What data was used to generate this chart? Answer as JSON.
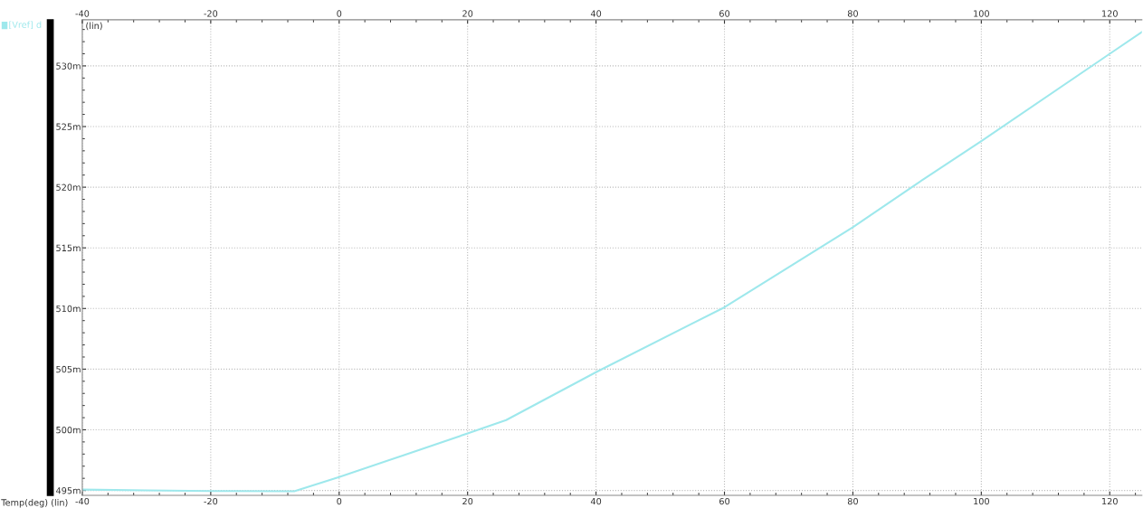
{
  "chart_data": {
    "type": "line",
    "xlabel": "Temp(deg) (lin)",
    "ylabel": "(lin)",
    "x": [
      -40,
      -30,
      -20,
      -7,
      0,
      10,
      20,
      26,
      40,
      60,
      80,
      90,
      100,
      120,
      125
    ],
    "series": [
      {
        "name": "[Vref] d",
        "color": "#9ee8ec",
        "values": [
          495.07,
          495.0,
          494.95,
          494.93,
          496.1,
          497.9,
          499.7,
          500.8,
          504.75,
          510.1,
          516.7,
          520.3,
          523.8,
          531.0,
          532.8
        ]
      }
    ],
    "xlim": [
      -40,
      125
    ],
    "xticks": [
      -40,
      -20,
      0,
      20,
      40,
      60,
      80,
      100,
      120
    ],
    "x2lim": [
      -40,
      125
    ],
    "x2ticks": [
      -40,
      -20,
      0,
      20,
      40,
      60,
      80,
      100,
      120
    ],
    "ylim": [
      494.6,
      533.8
    ],
    "yticks": [
      {
        "value": 495,
        "label": "495m"
      },
      {
        "value": 500,
        "label": "500m"
      },
      {
        "value": 505,
        "label": "505m"
      },
      {
        "value": 510,
        "label": "510m"
      },
      {
        "value": 515,
        "label": "515m"
      },
      {
        "value": 520,
        "label": "520m"
      },
      {
        "value": 525,
        "label": "525m"
      },
      {
        "value": 530,
        "label": "530m"
      }
    ],
    "grid": true,
    "legend": "top left",
    "marker": "none",
    "line_style": "solid"
  }
}
